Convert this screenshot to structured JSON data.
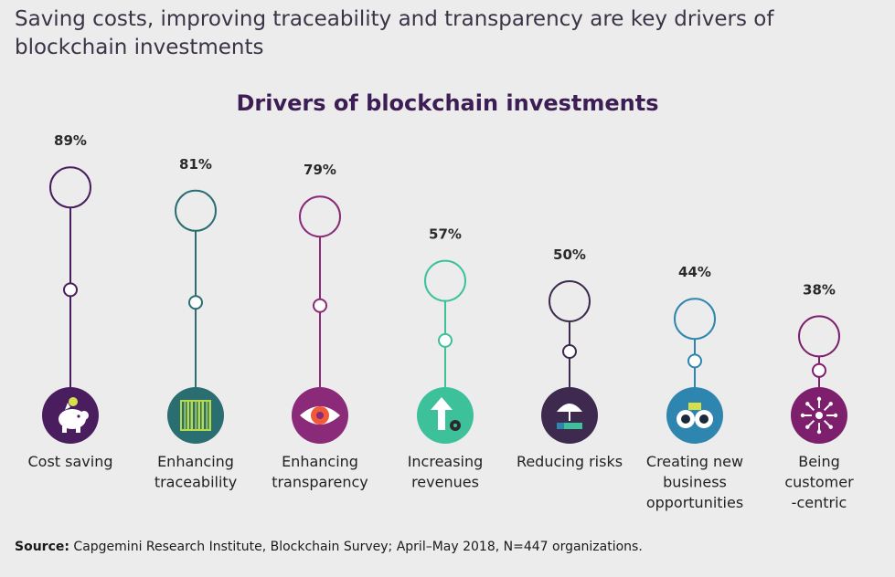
{
  "headline": "Saving costs, improving traceability and transparency are key drivers of blockchain investments",
  "source": {
    "prefix": "Source:",
    "text": "Capgemini Research Institute, Blockchain Survey; April–May 2018, N=447 organizations."
  },
  "chart_data": {
    "type": "lollipop",
    "title": "Drivers of blockchain investments",
    "unit": "%",
    "categories": [
      "Cost saving",
      "Enhancing traceability",
      "Enhancing transparency",
      "Increasing revenues",
      "Reducing risks",
      "Creating new business opportunities",
      "Being customer -centric"
    ],
    "label_lines": [
      [
        "Cost saving"
      ],
      [
        "Enhancing",
        "traceability"
      ],
      [
        "Enhancing",
        "transparency"
      ],
      [
        "Increasing",
        "revenues"
      ],
      [
        "Reducing risks"
      ],
      [
        "Creating new",
        "business",
        "opportunities"
      ],
      [
        "Being",
        "customer",
        "-centric"
      ]
    ],
    "values": [
      89,
      81,
      79,
      57,
      50,
      44,
      38
    ],
    "value_labels": [
      "89%",
      "81%",
      "79%",
      "57%",
      "50%",
      "44%",
      "38%"
    ],
    "colors": [
      "#4a1e5e",
      "#2a6e72",
      "#8a2a78",
      "#3cc19a",
      "#3d2a4e",
      "#2e86b0",
      "#7d1f6c"
    ],
    "icons": [
      "piggy-bank-icon",
      "barcode-icon",
      "eye-icon",
      "upward-arrow-coins-icon",
      "umbrella-hand-icon",
      "binoculars-icon",
      "customer-centric-icon"
    ]
  }
}
